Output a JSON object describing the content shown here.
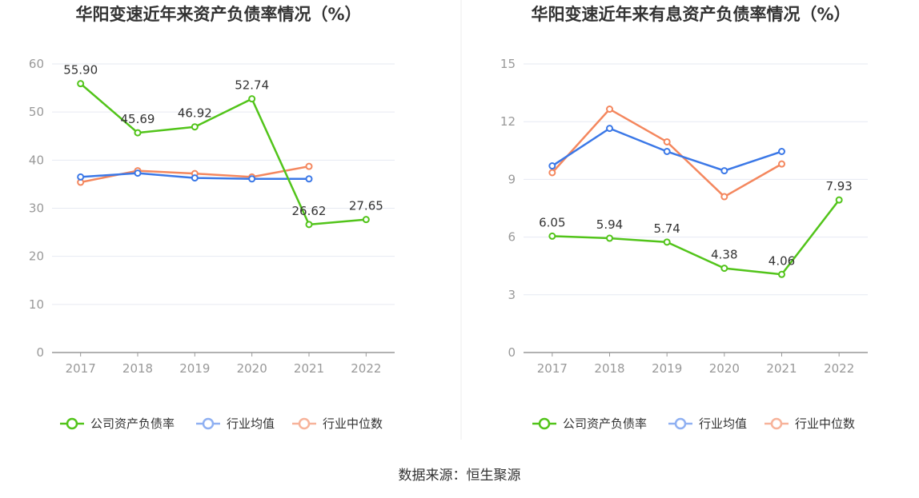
{
  "source": "数据来源：恒生聚源",
  "chart_data": [
    {
      "type": "line",
      "title": "华阳变速近年来资产负债率情况（%）",
      "xlabel": "",
      "ylabel": "",
      "categories": [
        "2017",
        "2018",
        "2019",
        "2020",
        "2021",
        "2022"
      ],
      "ylim": [
        0,
        60
      ],
      "yticks": [
        0,
        10,
        20,
        30,
        40,
        50,
        60
      ],
      "grid": true,
      "legend_position": "bottom",
      "series": [
        {
          "name": "公司资产负债率",
          "color": "#52c41a",
          "values": [
            55.9,
            45.69,
            46.92,
            52.74,
            26.62,
            27.65
          ],
          "show_labels": true,
          "labels": [
            "55.90",
            "45.69",
            "46.92",
            "52.74",
            "26.62",
            "27.65"
          ]
        },
        {
          "name": "行业均值",
          "color": "#3b78e7",
          "values": [
            36.5,
            37.3,
            36.3,
            36.1,
            36.1,
            null
          ],
          "show_labels": false
        },
        {
          "name": "行业中位数",
          "color": "#f4875e",
          "values": [
            35.4,
            37.8,
            37.2,
            36.5,
            38.7,
            null
          ],
          "show_labels": false
        }
      ]
    },
    {
      "type": "line",
      "title": "华阳变速近年来有息资产负债率情况（%）",
      "xlabel": "",
      "ylabel": "",
      "categories": [
        "2017",
        "2018",
        "2019",
        "2020",
        "2021",
        "2022"
      ],
      "ylim": [
        0,
        15
      ],
      "yticks": [
        0,
        3,
        6,
        9,
        12,
        15
      ],
      "grid": true,
      "legend_position": "bottom",
      "series": [
        {
          "name": "公司资产负债率",
          "color": "#52c41a",
          "values": [
            6.05,
            5.94,
            5.74,
            4.38,
            4.06,
            7.93
          ],
          "show_labels": true,
          "labels": [
            "6.05",
            "5.94",
            "5.74",
            "4.38",
            "4.06",
            "7.93"
          ]
        },
        {
          "name": "行业均值",
          "color": "#3b78e7",
          "values": [
            9.7,
            11.65,
            10.45,
            9.45,
            10.45,
            null
          ],
          "show_labels": false
        },
        {
          "name": "行业中位数",
          "color": "#f4875e",
          "values": [
            9.35,
            12.65,
            10.95,
            8.1,
            9.8,
            null
          ],
          "show_labels": false
        }
      ]
    }
  ]
}
